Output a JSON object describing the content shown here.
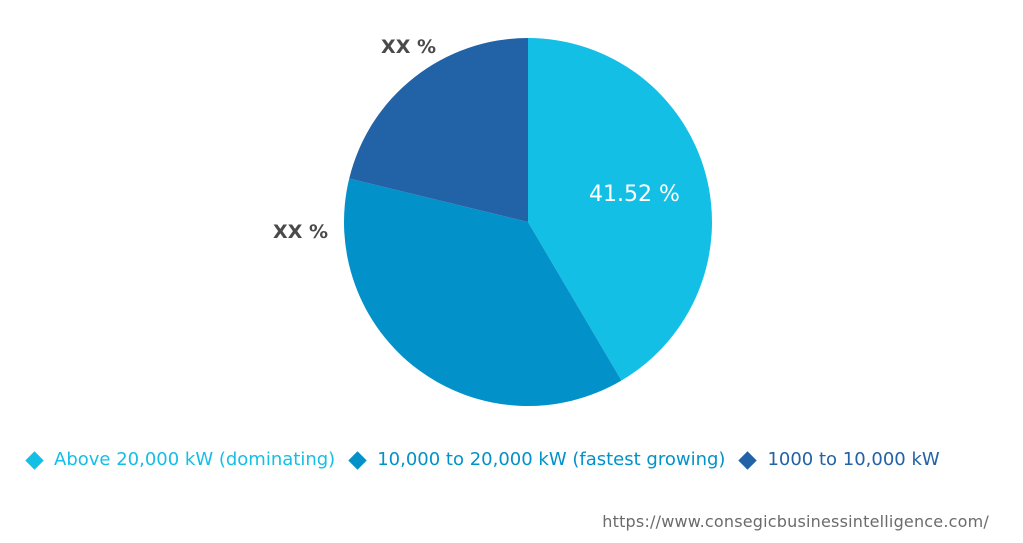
{
  "chart_data": {
    "type": "pie",
    "slices": [
      {
        "label": "Above 20,000 kW (dominating)",
        "value": 41.52,
        "display": "41.52 %",
        "color": "#14bfe6"
      },
      {
        "label": "10,000 to 20,000 kW (fastest growing)",
        "value": 37.28,
        "display": "XX %",
        "color": "#0292c9"
      },
      {
        "label": "1000 to 10,000 kW",
        "value": 21.2,
        "display": "XX %",
        "color": "#2262a6"
      }
    ],
    "start_angle_deg": 0,
    "direction": "clockwise",
    "legend_position": "bottom",
    "title": ""
  },
  "legend": {
    "items": [
      {
        "label": "Above 20,000 kW (dominating)",
        "color": "#14bfe6",
        "marker": "diamond-icon"
      },
      {
        "label": "10,000 to 20,000 kW (fastest growing)",
        "color": "#0292c9",
        "marker": "diamond-icon"
      },
      {
        "label": "1000 to 10,000 kW",
        "color": "#2262a6",
        "marker": "diamond-icon"
      }
    ]
  },
  "footer": {
    "source_url": "https://www.consegicbusinessintelligence.com/"
  }
}
